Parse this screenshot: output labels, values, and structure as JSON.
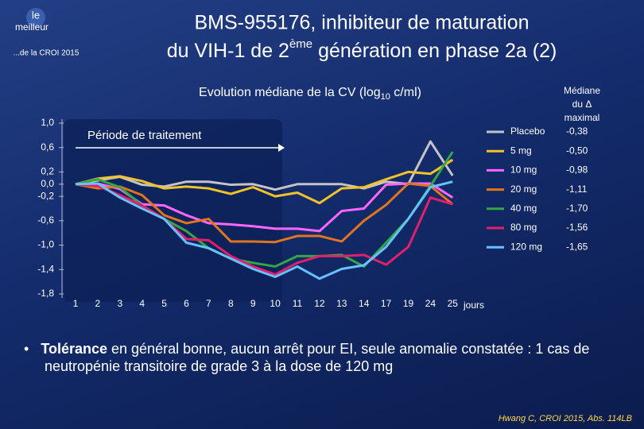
{
  "header": {
    "logo_top": "le",
    "logo_main": "meilleur",
    "logo_sub": "...de la CROI 2015",
    "title_line1": "BMS-955176, inhibiteur de maturation",
    "title_line2": [
      "du VIH-1 de 2",
      "ème",
      " génération en phase 2a (2)"
    ]
  },
  "chart_data": {
    "type": "line",
    "title": [
      "Evolution médiane de la CV (log",
      "10",
      " c/ml)"
    ],
    "x_label": "jours",
    "annotation": "Période de traitement",
    "legend_header": [
      "Médiane",
      "du Δ",
      "maximal"
    ],
    "categories": [
      "1",
      "2",
      "3",
      "4",
      "5",
      "6",
      "7",
      "8",
      "9",
      "10",
      "11",
      "12",
      "13",
      "14",
      "17",
      "19",
      "24",
      "25"
    ],
    "ylim": [
      -1.8,
      1.0
    ],
    "yticks": [
      {
        "value": 1.0,
        "label": "1,0"
      },
      {
        "value": 0.6,
        "label": "0,6"
      },
      {
        "value": 0.2,
        "label": "0,2"
      },
      {
        "value": 0,
        "label": "0,0"
      },
      {
        "value": -0.2,
        "label": "-0,2"
      },
      {
        "value": -0.6,
        "label": "-0,6"
      },
      {
        "value": -1.0,
        "label": "-1,0"
      },
      {
        "value": -1.4,
        "label": "-1,4"
      },
      {
        "value": -1.8,
        "label": "-1,8"
      }
    ],
    "series": [
      {
        "name": "Placebo",
        "color": "#c4c4c8",
        "max_delta": "-0,38",
        "values": [
          0,
          0.06,
          0.12,
          -0.01,
          -0.04,
          0.04,
          0.04,
          -0.01,
          0,
          -0.09,
          0,
          0,
          0,
          -0.07,
          0.04,
          0,
          0.7,
          0.14
        ]
      },
      {
        "name": "5 mg",
        "color": "#f2c22a",
        "max_delta": "-0,50",
        "values": [
          0,
          0.09,
          0.13,
          0.05,
          -0.07,
          -0.04,
          -0.07,
          -0.16,
          -0.05,
          -0.2,
          -0.14,
          -0.31,
          -0.07,
          -0.05,
          0.08,
          0.2,
          0.17,
          0.4
        ]
      },
      {
        "name": "10 mg",
        "color": "#ff66ff",
        "max_delta": "-0,98",
        "values": [
          0,
          0.01,
          -0.08,
          -0.33,
          -0.35,
          -0.51,
          -0.64,
          -0.66,
          -0.69,
          -0.73,
          -0.73,
          -0.77,
          -0.44,
          -0.4,
          -0.01,
          0.01,
          0.01,
          -0.22
        ]
      },
      {
        "name": "20 mg",
        "color": "#e0741f",
        "max_delta": "-1,11",
        "values": [
          0,
          -0.07,
          -0.04,
          -0.18,
          -0.51,
          -0.64,
          -0.57,
          -0.94,
          -0.94,
          -0.95,
          -0.85,
          -0.85,
          -0.94,
          -0.6,
          -0.34,
          0.01,
          -0.03,
          -0.33
        ]
      },
      {
        "name": "40 mg",
        "color": "#33a646",
        "max_delta": "-1,70",
        "values": [
          0,
          0.08,
          -0.05,
          -0.35,
          -0.57,
          -0.77,
          -1.05,
          -1.22,
          -1.29,
          -1.35,
          -1.18,
          -1.18,
          -1.16,
          -1.35,
          -0.96,
          -0.57,
          -0.03,
          0.53
        ]
      },
      {
        "name": "80 mg",
        "color": "#e0206a",
        "max_delta": "-1,56",
        "values": [
          0,
          -0.03,
          -0.18,
          -0.35,
          -0.57,
          -0.9,
          -0.92,
          -1.18,
          -1.35,
          -1.48,
          -1.29,
          -1.18,
          -1.18,
          -1.16,
          -1.32,
          -1.03,
          -0.22,
          -0.33
        ]
      },
      {
        "name": "120 mg",
        "color": "#66c2ff",
        "max_delta": "-1,65",
        "values": [
          0,
          0.01,
          -0.22,
          -0.4,
          -0.57,
          -0.96,
          -1.05,
          -1.22,
          -1.39,
          -1.52,
          -1.35,
          -1.55,
          -1.39,
          -1.33,
          -1.03,
          -0.57,
          -0.05,
          0.04
        ]
      }
    ]
  },
  "bullet": {
    "bold": "Tolérance",
    "text": " en général bonne, aucun arrêt pour EI, seule anomalie constatée : 1 cas de neutropénie transitoire de grade 3 à la dose de 120 mg"
  },
  "footer": "Hwang C, CROI 2015, Abs. 114LB"
}
